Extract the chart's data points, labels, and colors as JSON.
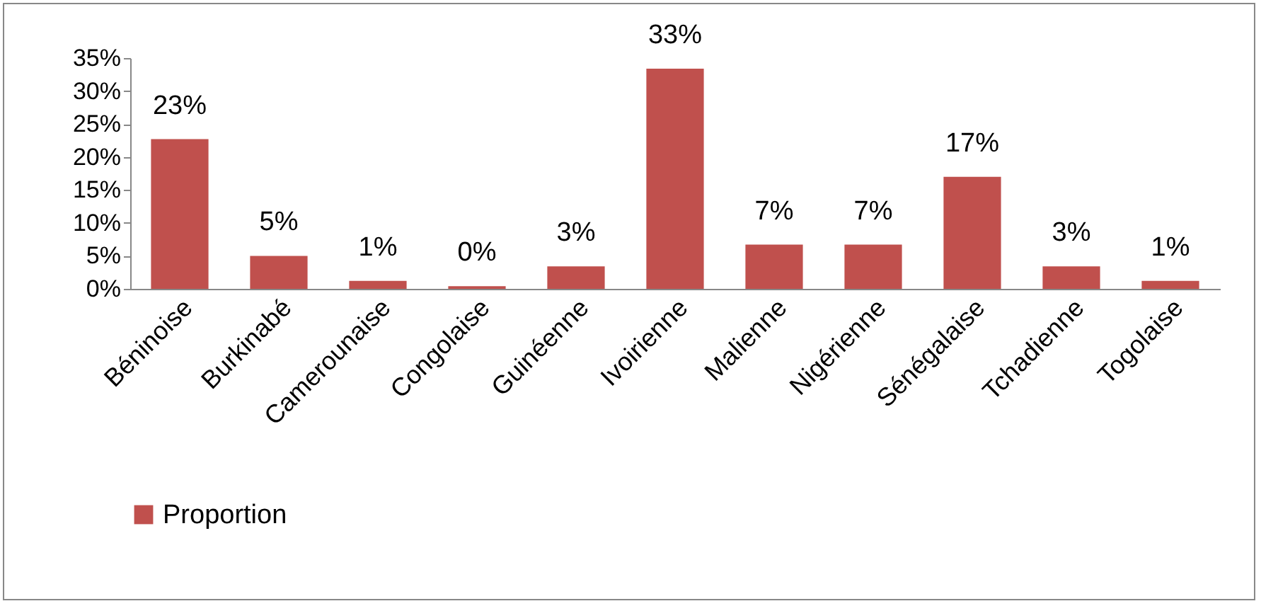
{
  "chart_data": {
    "type": "bar",
    "categories": [
      "Béninoise",
      "Burkinabé",
      "Camerounaise",
      "Congolaise",
      "Guinéenne",
      "Ivoirienne",
      "Malienne",
      "Nigérienne",
      "Sénégalaise",
      "Tchadienne",
      "Togolaise"
    ],
    "series": [
      {
        "name": "Proportion",
        "color": "#c0504d",
        "values": [
          22.7,
          5,
          1.2,
          0.4,
          3.4,
          33.4,
          6.7,
          6.7,
          17,
          3.4,
          1.2
        ],
        "value_labels": [
          "23%",
          "5%",
          "1%",
          "0%",
          "3%",
          "33%",
          "7%",
          "7%",
          "17%",
          "3%",
          "1%"
        ]
      }
    ],
    "ylim": [
      0,
      35
    ],
    "yticks": [
      {
        "value": 0,
        "label": "0%"
      },
      {
        "value": 5,
        "label": "5%"
      },
      {
        "value": 10,
        "label": "10%"
      },
      {
        "value": 15,
        "label": "15%"
      },
      {
        "value": 20,
        "label": "20%"
      },
      {
        "value": 25,
        "label": "25%"
      },
      {
        "value": 30,
        "label": "30%"
      },
      {
        "value": 35,
        "label": "35%"
      }
    ],
    "grid": false,
    "legend": "bottom"
  }
}
